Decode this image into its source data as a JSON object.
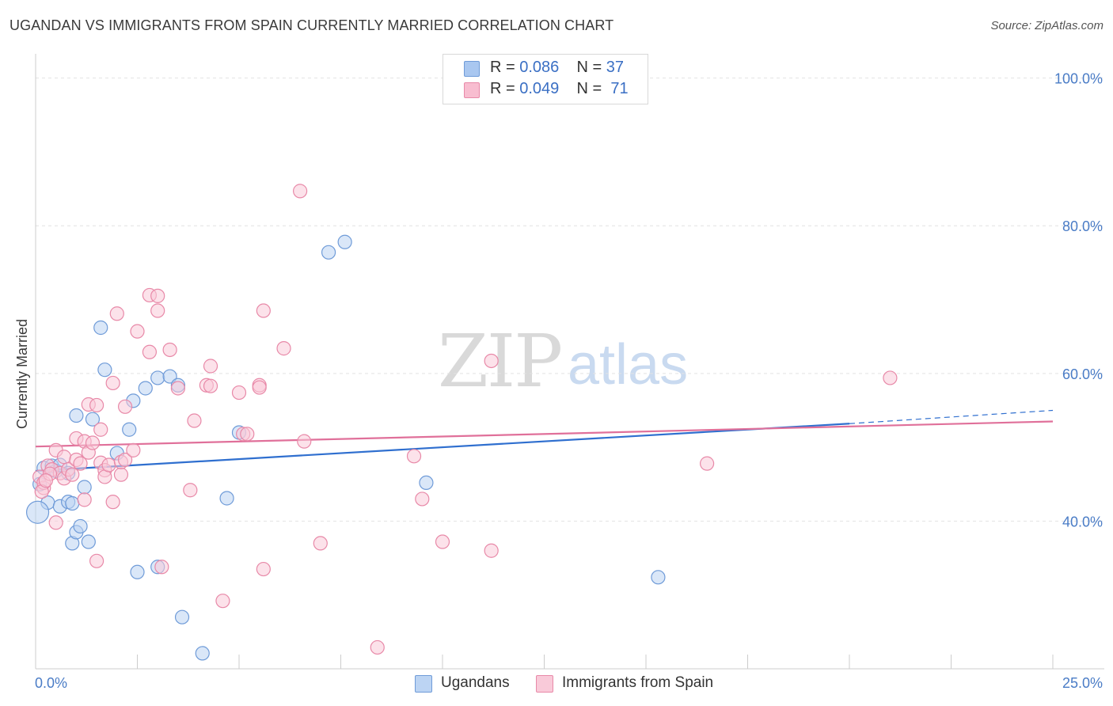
{
  "title": "UGANDAN VS IMMIGRANTS FROM SPAIN CURRENTLY MARRIED CORRELATION CHART",
  "source": "Source: ZipAtlas.com",
  "watermark": {
    "zip": "ZIP",
    "atlas": "atlas"
  },
  "legend": {
    "rows": [
      {
        "r_label": "R = ",
        "r_value": "0.086",
        "n_label": "N = ",
        "n_value": "37",
        "color": "#a9c7f0",
        "border": "#6f9bd8"
      },
      {
        "r_label": "R = ",
        "r_value": "0.049",
        "n_label": "N = ",
        "n_value": "71",
        "color": "#f8bdd0",
        "border": "#e889a8"
      }
    ]
  },
  "bottom_legend": [
    {
      "label": "Ugandans",
      "color": "#bcd4f3",
      "border": "#6f9bd8"
    },
    {
      "label": "Immigrants from Spain",
      "color": "#f9cad9",
      "border": "#e889a8"
    }
  ],
  "chart_data": {
    "type": "scatter",
    "title": "UGANDAN VS IMMIGRANTS FROM SPAIN CURRENTLY MARRIED CORRELATION CHART",
    "xlabel": "",
    "ylabel": "Currently Married",
    "xlim": [
      0,
      25
    ],
    "ylim": [
      20,
      102
    ],
    "x_tick_labels": [
      "0.0%",
      "25.0%"
    ],
    "y_ticks": [
      40,
      60,
      80,
      100
    ],
    "y_tick_labels": [
      "40.0%",
      "60.0%",
      "80.0%",
      "100.0%"
    ],
    "grid": true,
    "legend_position": "top-center",
    "series": [
      {
        "name": "Ugandans",
        "color": "#6f9bd8",
        "fill": "#bcd4f3",
        "line_color": "#2f6fcf",
        "trend": {
          "x": [
            0,
            20
          ],
          "y": [
            46.8,
            53.2
          ],
          "dashed_x": [
            20,
            25
          ],
          "dashed_y": [
            53.2,
            55.0
          ]
        },
        "points": [
          [
            0.2,
            47.2
          ],
          [
            0.3,
            42.5
          ],
          [
            0.4,
            47.5
          ],
          [
            0.5,
            46.8
          ],
          [
            0.6,
            47.6
          ],
          [
            0.6,
            42.0
          ],
          [
            0.8,
            42.6
          ],
          [
            0.8,
            46.5
          ],
          [
            0.9,
            42.4
          ],
          [
            0.9,
            37.0
          ],
          [
            1.0,
            38.5
          ],
          [
            1.0,
            54.3
          ],
          [
            1.1,
            39.3
          ],
          [
            1.2,
            44.6
          ],
          [
            1.3,
            37.2
          ],
          [
            1.4,
            53.8
          ],
          [
            1.6,
            66.2
          ],
          [
            1.7,
            60.5
          ],
          [
            2.0,
            49.2
          ],
          [
            2.3,
            52.4
          ],
          [
            2.4,
            56.3
          ],
          [
            2.5,
            33.1
          ],
          [
            2.7,
            58.0
          ],
          [
            3.0,
            33.8
          ],
          [
            3.0,
            59.4
          ],
          [
            3.3,
            59.6
          ],
          [
            3.5,
            58.4
          ],
          [
            3.6,
            27.0
          ],
          [
            4.1,
            22.1
          ],
          [
            4.7,
            43.1
          ],
          [
            5.0,
            52.0
          ],
          [
            7.2,
            76.4
          ],
          [
            7.6,
            77.8
          ],
          [
            9.6,
            45.2
          ],
          [
            15.3,
            32.4
          ],
          [
            0.05,
            41.2
          ],
          [
            0.1,
            45.0
          ]
        ]
      },
      {
        "name": "Immigrants from Spain",
        "color": "#e889a8",
        "fill": "#f9cad9",
        "line_color": "#e0709a",
        "trend": {
          "x": [
            0,
            25
          ],
          "y": [
            50.1,
            53.5
          ]
        },
        "points": [
          [
            0.1,
            46.0
          ],
          [
            0.2,
            44.5
          ],
          [
            0.2,
            45.2
          ],
          [
            0.3,
            47.5
          ],
          [
            0.4,
            47.0
          ],
          [
            0.5,
            49.6
          ],
          [
            0.5,
            39.8
          ],
          [
            0.6,
            46.5
          ],
          [
            0.7,
            48.7
          ],
          [
            0.7,
            45.8
          ],
          [
            0.8,
            47.0
          ],
          [
            0.9,
            46.3
          ],
          [
            1.0,
            48.3
          ],
          [
            1.0,
            51.2
          ],
          [
            1.1,
            47.8
          ],
          [
            1.2,
            42.9
          ],
          [
            1.2,
            50.8
          ],
          [
            1.3,
            55.8
          ],
          [
            1.3,
            49.3
          ],
          [
            1.4,
            50.6
          ],
          [
            1.5,
            55.7
          ],
          [
            1.5,
            34.6
          ],
          [
            1.6,
            52.4
          ],
          [
            1.6,
            47.9
          ],
          [
            1.7,
            46.9
          ],
          [
            1.7,
            46.0
          ],
          [
            1.8,
            47.6
          ],
          [
            1.9,
            58.7
          ],
          [
            1.9,
            42.6
          ],
          [
            2.0,
            68.1
          ],
          [
            2.1,
            46.3
          ],
          [
            2.1,
            48.0
          ],
          [
            2.2,
            48.3
          ],
          [
            2.2,
            55.5
          ],
          [
            2.4,
            49.6
          ],
          [
            2.5,
            65.7
          ],
          [
            2.8,
            62.9
          ],
          [
            2.8,
            70.6
          ],
          [
            3.0,
            70.5
          ],
          [
            3.0,
            68.5
          ],
          [
            3.1,
            33.8
          ],
          [
            3.3,
            63.2
          ],
          [
            3.5,
            58.0
          ],
          [
            3.8,
            44.2
          ],
          [
            3.9,
            53.6
          ],
          [
            4.2,
            58.4
          ],
          [
            4.3,
            61.0
          ],
          [
            4.3,
            58.3
          ],
          [
            4.6,
            29.2
          ],
          [
            5.0,
            57.4
          ],
          [
            5.1,
            51.8
          ],
          [
            5.2,
            51.8
          ],
          [
            5.5,
            58.4
          ],
          [
            5.5,
            58.1
          ],
          [
            5.6,
            33.5
          ],
          [
            5.6,
            68.5
          ],
          [
            6.1,
            63.4
          ],
          [
            6.5,
            84.7
          ],
          [
            6.6,
            50.8
          ],
          [
            7.0,
            37.0
          ],
          [
            8.4,
            22.9
          ],
          [
            9.3,
            48.8
          ],
          [
            9.5,
            43.0
          ],
          [
            10.0,
            37.2
          ],
          [
            11.2,
            61.7
          ],
          [
            11.2,
            36.0
          ],
          [
            16.5,
            47.8
          ],
          [
            21.0,
            59.4
          ],
          [
            0.15,
            44.0
          ],
          [
            0.35,
            46.4
          ],
          [
            0.25,
            45.5
          ]
        ]
      }
    ]
  }
}
